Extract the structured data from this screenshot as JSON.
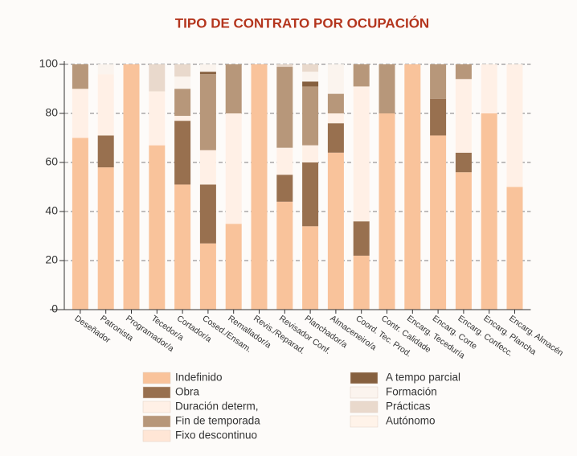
{
  "chart_data": {
    "type": "stacked_bar",
    "title": "TIPO DE CONTRATO POR OCUPACIÓN",
    "categories": [
      "Deseñador",
      "Patronista",
      "Programador/a",
      "Tecedor/a",
      "Cortador/a",
      "Cosed./Ensam.",
      "Remallador/a",
      "Revis./Reparad.",
      "Revisador Conf.",
      "Planchador/a",
      "Almaceneiro/a",
      "Coord. Tec. Prod.",
      "Contr. Calidade",
      "Encarg. Teceduría",
      "Encarg. Corte",
      "Encarg. Confecc.",
      "Encarg. Plancha",
      "Encarg. Almacén"
    ],
    "series": [
      {
        "name": "Indefinido",
        "color": "#f9c39b",
        "values": [
          70,
          58,
          100,
          67,
          51,
          27,
          35,
          100,
          44,
          34,
          64,
          22,
          80,
          100,
          71,
          56,
          80,
          50
        ]
      },
      {
        "name": "Obra",
        "color": "#98704f",
        "values": [
          0,
          13,
          0,
          0,
          26,
          24,
          0,
          0,
          11,
          26,
          12,
          14,
          0,
          0,
          15,
          8,
          0,
          0
        ]
      },
      {
        "name": "Duración determ,",
        "color": "#fff0e6",
        "values": [
          20,
          25,
          0,
          22,
          2,
          14,
          45,
          0,
          11,
          7,
          4,
          55,
          0,
          0,
          0,
          30,
          20,
          50
        ]
      },
      {
        "name": "Fin de temporada",
        "color": "#b7977a",
        "values": [
          10,
          0,
          0,
          0,
          11,
          31,
          20,
          0,
          33,
          24,
          8,
          9,
          20,
          0,
          14,
          6,
          0,
          0
        ]
      },
      {
        "name": "Fixo descontinuo",
        "color": "#ffe6d6",
        "values": [
          0,
          0,
          0,
          0,
          0,
          0,
          0,
          0,
          0,
          0,
          0,
          0,
          0,
          0,
          0,
          0,
          0,
          0
        ]
      },
      {
        "name": "A tempo parcial",
        "color": "#86603f",
        "values": [
          0,
          0,
          0,
          0,
          0,
          1,
          0,
          0,
          0,
          2,
          0,
          0,
          0,
          0,
          0,
          0,
          0,
          0
        ]
      },
      {
        "name": "Formación",
        "color": "#fbf4ee",
        "values": [
          0,
          4,
          0,
          0,
          5,
          3,
          0,
          0,
          0,
          4,
          12,
          0,
          0,
          0,
          0,
          0,
          0,
          0
        ]
      },
      {
        "name": "Prácticas",
        "color": "#e9d9cc",
        "values": [
          0,
          0,
          0,
          11,
          5,
          0,
          0,
          0,
          1,
          3,
          0,
          0,
          0,
          0,
          0,
          0,
          0,
          0
        ]
      },
      {
        "name": "Autónomo",
        "color": "#fff3e9",
        "values": [
          0,
          0,
          0,
          0,
          0,
          0,
          0,
          0,
          0,
          0,
          0,
          0,
          0,
          0,
          0,
          0,
          0,
          0
        ]
      }
    ],
    "ylim": [
      0,
      100
    ],
    "yticks": [
      0,
      20,
      40,
      60,
      80,
      100
    ],
    "grid": true,
    "legend": "bottom"
  }
}
